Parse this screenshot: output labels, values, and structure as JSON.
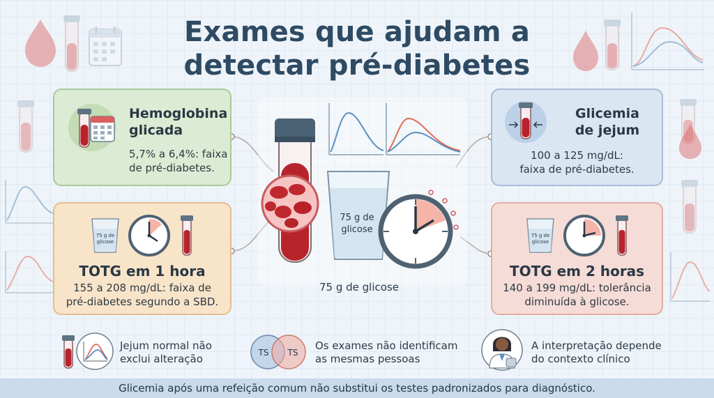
{
  "title": {
    "line1": "Exames que ajudam a",
    "line2": "detectar pré-diabetes"
  },
  "cards": {
    "hemoglobina": {
      "title_line1": "Hemoglobina",
      "title_line2": "glicada",
      "text_line1": "5,7% a 6,4%: faixa",
      "text_line2": "de pré-diabetes."
    },
    "jejum": {
      "title_line1": "Glicemia",
      "title_line2": "de jejum",
      "text_line1": "100 a 125 mg/dL:",
      "text_line2": "faixa de pré-diabetes."
    },
    "totg1": {
      "title": "TOTG em 1 hora",
      "text_line1": "155 a 208 mg/dL: faixa de",
      "text_line2": "pré-diabetes segundo a SBD.",
      "cup_label_line1": "75 g de",
      "cup_label_line2": "glicose"
    },
    "totg2": {
      "title": "TOTG em 2 horas",
      "text_line1": "140 a 199 mg/dL: tolerância",
      "text_line2": "diminuída à glicose.",
      "cup_label_line1": "75 g de",
      "cup_label_line2": "glicose"
    }
  },
  "center": {
    "cup_label_line1": "75 g de",
    "cup_label_line2": "glicose",
    "caption": "75 g de glicose"
  },
  "bottom": {
    "note1_line1": "Jejum normal não",
    "note1_line2": "exclui alteração",
    "venn_left": "TS",
    "venn_right": "TS",
    "note2_line1": "Os exames não identificam",
    "note2_line2": "as mesmas pessoas",
    "note3_line1": "A interpretação depende",
    "note3_line2": "do contexto clínico"
  },
  "footer": "Glicemia após uma refeição comum não substitui os testes padronizados para diagnóstico.",
  "colors": {
    "title": "#2f4b63",
    "blood": "#b8232b",
    "green_card": "#dcebd3",
    "blue_card": "#dbe6f3",
    "orange_card": "#f8e4c9",
    "pink_card": "#f6dcd6",
    "curve_blue": "#5a8fbf",
    "curve_red": "#e06d5a"
  }
}
